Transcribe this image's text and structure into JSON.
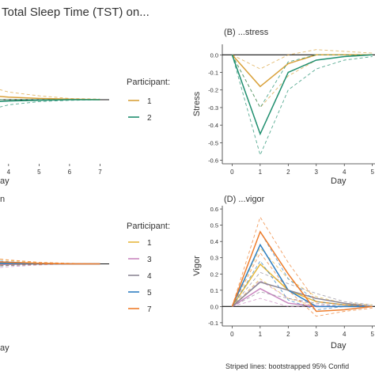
{
  "header": {
    "title": "Total Sleep Time (TST) on..."
  },
  "legend_top": {
    "title": "Participant:",
    "entries": [
      {
        "label": "1",
        "color": "#D9A13B"
      },
      {
        "label": "2",
        "color": "#1E8E6E"
      }
    ]
  },
  "legend_bottom": {
    "title": "Participant:",
    "entries": [
      {
        "label": "1",
        "color": "#E6B83E"
      },
      {
        "label": "3",
        "color": "#C987C0"
      },
      {
        "label": "4",
        "color": "#8E8896"
      },
      {
        "label": "5",
        "color": "#2F7FC1"
      },
      {
        "label": "7",
        "color": "#EE7D2C"
      }
    ]
  },
  "footnote": "Striped lines: bootstrapped 95% Confid",
  "chart_data": [
    {
      "id": "A",
      "type": "line",
      "xlabel": "ay",
      "x_ticks": [
        4,
        5,
        6,
        7
      ],
      "xlim": [
        3.2,
        7.3
      ],
      "ylim": [
        -1,
        1
      ],
      "series": [
        {
          "name": "1",
          "color": "#D9A13B",
          "x": [
            3,
            4,
            5,
            6,
            7
          ],
          "values": [
            0.08,
            0.04,
            0.02,
            0.01,
            0.0
          ],
          "ci_lower": [
            0.0,
            0.0,
            0.0,
            0.0,
            0.0
          ],
          "ci_upper": [
            0.25,
            0.12,
            0.06,
            0.02,
            0.01
          ]
        },
        {
          "name": "2",
          "color": "#1E8E6E",
          "x": [
            3,
            4,
            5,
            6,
            7
          ],
          "values": [
            -0.05,
            -0.02,
            -0.01,
            0.0,
            0.0
          ],
          "ci_lower": [
            -0.2,
            -0.08,
            -0.03,
            -0.01,
            0.0
          ],
          "ci_upper": [
            0.0,
            0.0,
            0.0,
            0.0,
            0.0
          ]
        }
      ]
    },
    {
      "id": "B",
      "type": "line",
      "title": "(B) ...stress",
      "xlabel": "Day",
      "ylabel": "Stress",
      "x_ticks": [
        0,
        1,
        2,
        3,
        4,
        5
      ],
      "x_tick_labels": [
        "0",
        "1",
        "2",
        "3",
        "4",
        "5"
      ],
      "y_ticks": [
        0.0,
        -0.1,
        -0.2,
        -0.3,
        -0.4,
        -0.5,
        -0.6
      ],
      "y_tick_labels": [
        "0.0",
        "-0.1",
        "-0.2",
        "-0.3",
        "-0.4",
        "-0.5",
        "-0.6"
      ],
      "xlim": [
        -0.35,
        5.15
      ],
      "ylim": [
        -0.62,
        0.06
      ],
      "series": [
        {
          "name": "1",
          "color": "#D9A13B",
          "x": [
            0,
            1,
            2,
            3,
            4,
            5
          ],
          "values": [
            0.0,
            -0.18,
            -0.05,
            0.0,
            0.0,
            0.0
          ],
          "ci_lower": [
            0.0,
            -0.3,
            -0.12,
            -0.03,
            -0.01,
            0.0
          ],
          "ci_upper": [
            0.0,
            -0.08,
            0.0,
            0.03,
            0.02,
            0.01
          ]
        },
        {
          "name": "2",
          "color": "#1E8E6E",
          "x": [
            0,
            1,
            2,
            3,
            4,
            5
          ],
          "values": [
            0.0,
            -0.45,
            -0.1,
            -0.03,
            -0.01,
            0.0
          ],
          "ci_lower": [
            0.0,
            -0.57,
            -0.2,
            -0.08,
            -0.03,
            -0.01
          ],
          "ci_upper": [
            0.0,
            -0.3,
            -0.04,
            0.0,
            0.0,
            0.0
          ]
        }
      ]
    },
    {
      "id": "C",
      "type": "line",
      "title": "n",
      "xlabel": "ay",
      "xlim": [
        3.2,
        7.3
      ],
      "ylim": [
        -1,
        1
      ],
      "series": [
        {
          "name": "1",
          "color": "#E6B83E",
          "x": [
            3,
            4,
            5,
            6,
            7
          ],
          "values": [
            0.04,
            0.02,
            0.01,
            0.0,
            0.0
          ],
          "ci_lower": [
            -0.05,
            -0.03,
            -0.01,
            0.0,
            0.0
          ],
          "ci_upper": [
            0.14,
            0.06,
            0.02,
            0.01,
            0.0
          ]
        },
        {
          "name": "3",
          "color": "#C987C0",
          "x": [
            3,
            4,
            5,
            6,
            7
          ],
          "values": [
            -0.02,
            -0.01,
            0.0,
            0.0,
            0.0
          ],
          "ci_lower": [
            -0.1,
            -0.05,
            -0.02,
            0.0,
            0.0
          ],
          "ci_upper": [
            0.04,
            0.02,
            0.01,
            0.0,
            0.0
          ]
        },
        {
          "name": "4",
          "color": "#8E8896",
          "x": [
            3,
            4,
            5,
            6,
            7
          ],
          "values": [
            0.0,
            0.0,
            0.0,
            0.0,
            0.0
          ],
          "ci_lower": [
            -0.04,
            -0.02,
            -0.01,
            0.0,
            0.0
          ],
          "ci_upper": [
            0.04,
            0.02,
            0.01,
            0.0,
            0.0
          ]
        },
        {
          "name": "5",
          "color": "#2F7FC1",
          "x": [
            3,
            4,
            5,
            6,
            7
          ],
          "values": [
            0.02,
            0.01,
            0.0,
            0.0,
            0.0
          ],
          "ci_lower": [
            -0.06,
            -0.03,
            -0.01,
            0.0,
            0.0
          ],
          "ci_upper": [
            0.08,
            0.04,
            0.01,
            0.0,
            0.0
          ]
        },
        {
          "name": "7",
          "color": "#EE7D2C",
          "x": [
            3,
            4,
            5,
            6,
            7
          ],
          "values": [
            0.05,
            0.03,
            0.01,
            0.0,
            0.0
          ],
          "ci_lower": [
            -0.03,
            -0.02,
            -0.01,
            0.0,
            0.0
          ],
          "ci_upper": [
            0.12,
            0.07,
            0.03,
            0.01,
            0.0
          ]
        }
      ]
    },
    {
      "id": "D",
      "type": "line",
      "title": "(D) ...vigor",
      "xlabel": "Day",
      "ylabel": "Vigor",
      "x_ticks": [
        0,
        1,
        2,
        3,
        4,
        5
      ],
      "x_tick_labels": [
        "0",
        "1",
        "2",
        "3",
        "4",
        "5"
      ],
      "y_ticks": [
        0.6,
        0.5,
        0.4,
        0.3,
        0.2,
        0.1,
        0.0,
        -0.1
      ],
      "y_tick_labels": [
        "0.6",
        "0.5",
        "0.4",
        "0.3",
        "0.2",
        "0.1",
        "0.0",
        "-0.1"
      ],
      "xlim": [
        -0.35,
        5.15
      ],
      "ylim": [
        -0.12,
        0.62
      ],
      "series": [
        {
          "name": "1",
          "color": "#E6B83E",
          "x": [
            0,
            1,
            2,
            3,
            4,
            5
          ],
          "values": [
            0.0,
            0.26,
            0.1,
            0.03,
            0.01,
            0.0
          ],
          "ci_lower": [
            0.0,
            0.17,
            0.05,
            0.0,
            0.0,
            0.0
          ],
          "ci_upper": [
            0.0,
            0.36,
            0.17,
            0.06,
            0.02,
            0.01
          ]
        },
        {
          "name": "3",
          "color": "#C987C0",
          "x": [
            0,
            1,
            2,
            3,
            4,
            5
          ],
          "values": [
            0.0,
            0.11,
            0.02,
            0.0,
            0.0,
            0.0
          ],
          "ci_lower": [
            0.0,
            0.05,
            0.0,
            0.0,
            0.0,
            0.0
          ],
          "ci_upper": [
            0.0,
            0.16,
            0.05,
            0.01,
            0.0,
            0.0
          ]
        },
        {
          "name": "4",
          "color": "#8E8896",
          "x": [
            0,
            1,
            2,
            3,
            4,
            5
          ],
          "values": [
            0.0,
            0.15,
            0.1,
            0.05,
            0.02,
            0.0
          ],
          "ci_lower": [
            0.0,
            0.09,
            0.05,
            0.02,
            0.0,
            0.0
          ],
          "ci_upper": [
            0.0,
            0.21,
            0.14,
            0.08,
            0.03,
            0.01
          ]
        },
        {
          "name": "5",
          "color": "#2F7FC1",
          "x": [
            0,
            1,
            2,
            3,
            4,
            5
          ],
          "values": [
            0.0,
            0.38,
            0.1,
            0.0,
            0.0,
            0.0
          ],
          "ci_lower": [
            0.0,
            0.28,
            0.04,
            -0.02,
            0.0,
            0.0
          ],
          "ci_upper": [
            0.0,
            0.46,
            0.17,
            0.03,
            0.01,
            0.0
          ]
        },
        {
          "name": "7",
          "color": "#EE7D2C",
          "x": [
            0,
            1,
            2,
            3,
            4,
            5
          ],
          "values": [
            0.0,
            0.46,
            0.2,
            -0.03,
            -0.02,
            0.0
          ],
          "ci_lower": [
            0.0,
            0.33,
            0.1,
            -0.06,
            -0.03,
            -0.01
          ],
          "ci_upper": [
            0.0,
            0.55,
            0.27,
            0.03,
            0.01,
            0.0
          ]
        }
      ]
    }
  ]
}
